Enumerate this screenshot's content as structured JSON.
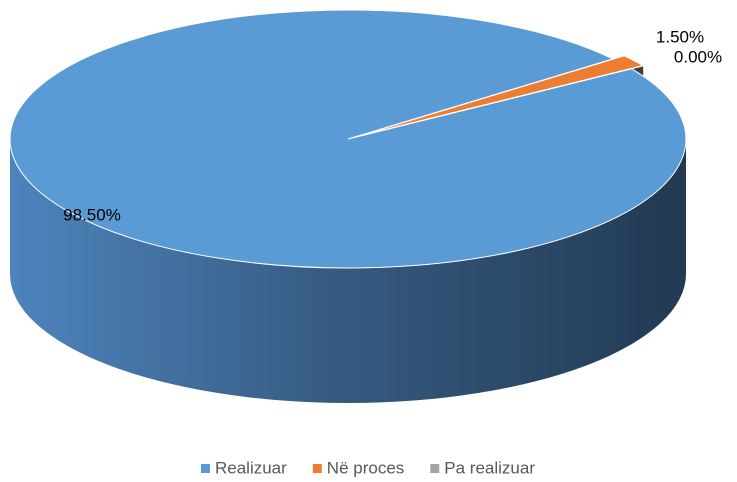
{
  "chart_data": {
    "type": "pie",
    "categories": [
      "Realizuar",
      "Në proces",
      "Pa realizuar"
    ],
    "values": [
      98.5,
      1.5,
      0
    ],
    "value_labels": [
      "98.50%",
      "1.50%",
      "0.00%"
    ],
    "colors": [
      "#5b9bd5",
      "#ed7d31",
      "#a5a5a5"
    ]
  }
}
